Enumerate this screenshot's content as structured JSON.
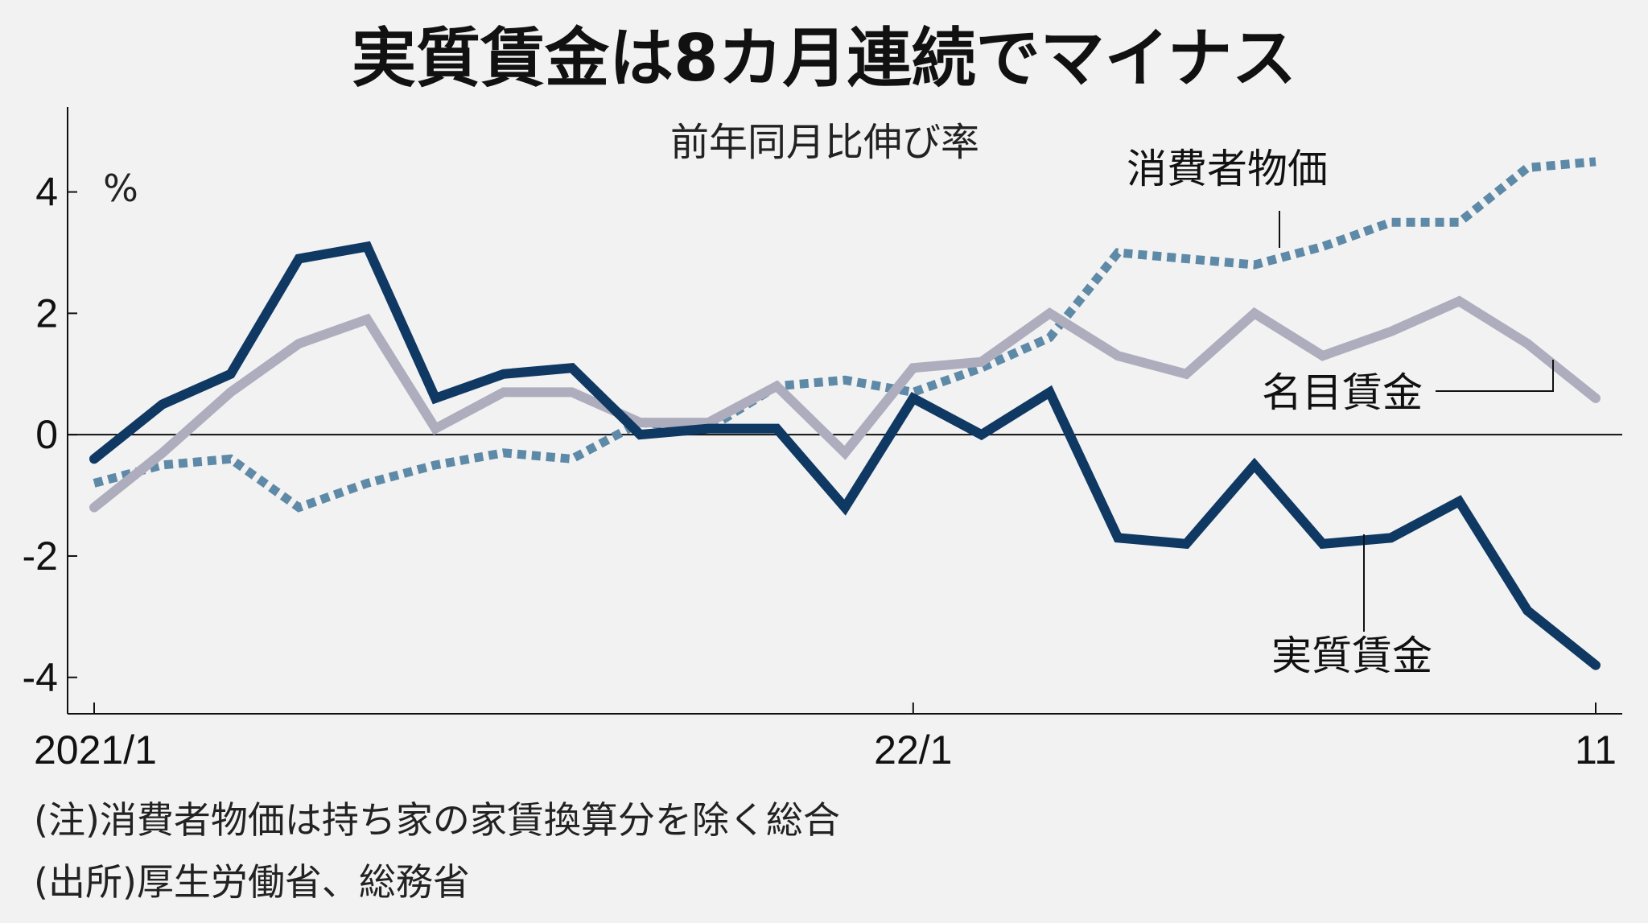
{
  "chart_data": {
    "type": "line",
    "title": "実質賃金は8カ月連続でマイナス",
    "subtitle": "前年同月比伸び率",
    "ylabel": "%",
    "ylim": [
      -4.6,
      5.4
    ],
    "y_ticks": [
      {
        "value": 4,
        "label": "4"
      },
      {
        "value": 2,
        "label": "2"
      },
      {
        "value": 0,
        "label": "0"
      },
      {
        "value": -2,
        "label": "-2"
      },
      {
        "value": -4,
        "label": "-4"
      }
    ],
    "x": [
      "2021/1",
      "2021/2",
      "2021/3",
      "2021/4",
      "2021/5",
      "2021/6",
      "2021/7",
      "2021/8",
      "2021/9",
      "2021/10",
      "2021/11",
      "2021/12",
      "2022/1",
      "2022/2",
      "2022/3",
      "2022/4",
      "2022/5",
      "2022/6",
      "2022/7",
      "2022/8",
      "2022/9",
      "2022/10",
      "2022/11"
    ],
    "x_ticks": [
      {
        "index": 0,
        "label": "2021/1"
      },
      {
        "index": 12,
        "label": "22/1"
      },
      {
        "index": 22,
        "label": "11"
      }
    ],
    "series": [
      {
        "name": "消費者物価",
        "color": "#5e8aa8",
        "style": "dotted",
        "values": [
          -0.8,
          -0.5,
          -0.4,
          -1.2,
          -0.8,
          -0.5,
          -0.3,
          -0.4,
          0.2,
          0.1,
          0.8,
          0.9,
          0.7,
          1.1,
          1.6,
          3.0,
          2.9,
          2.8,
          3.1,
          3.5,
          3.5,
          4.4,
          4.5
        ]
      },
      {
        "name": "名目賃金",
        "color": "#adadbd",
        "style": "solid",
        "values": [
          -1.2,
          -0.3,
          0.7,
          1.5,
          1.9,
          0.1,
          0.7,
          0.7,
          0.2,
          0.2,
          0.8,
          -0.3,
          1.1,
          1.2,
          2.0,
          1.3,
          1.0,
          2.0,
          1.3,
          1.7,
          2.2,
          1.5,
          0.6
        ]
      },
      {
        "name": "実質賃金",
        "color": "#0f3963",
        "style": "solid",
        "values": [
          -0.4,
          0.5,
          1.0,
          2.9,
          3.1,
          0.6,
          1.0,
          1.1,
          0.0,
          0.1,
          0.1,
          -1.2,
          0.6,
          0.0,
          0.7,
          -1.7,
          -1.8,
          -0.5,
          -1.8,
          -1.7,
          -1.1,
          -2.9,
          -3.8
        ]
      }
    ],
    "grid": false,
    "notes": [
      "(注)消費者物価は持ち家の家賃換算分を除く総合",
      "(出所)厚生労働省、総務省"
    ]
  }
}
